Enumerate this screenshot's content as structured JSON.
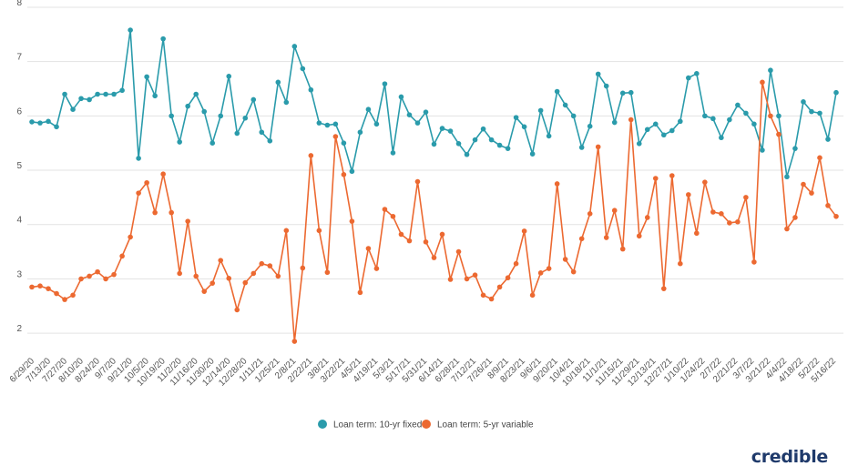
{
  "brand": "credible",
  "chart_data": {
    "type": "line",
    "title": "",
    "xlabel": "",
    "ylabel": "",
    "ylim": [
      1.7,
      8
    ],
    "yticks": [
      2,
      3,
      4,
      5,
      6,
      7,
      8
    ],
    "grid": true,
    "legend": "bottom-center",
    "x_tick_labels": [
      "6/29/20",
      "7/13/20",
      "7/27/20",
      "8/10/20",
      "8/24/20",
      "9/7/20",
      "9/21/20",
      "10/5/20",
      "10/19/20",
      "11/2/20",
      "11/16/20",
      "11/30/20",
      "12/14/20",
      "12/28/20",
      "1/11/21",
      "1/25/21",
      "2/8/21",
      "2/22/21",
      "3/8/21",
      "3/22/21",
      "4/5/21",
      "4/19/21",
      "5/3/21",
      "5/17/21",
      "5/31/21",
      "6/14/21",
      "6/28/21",
      "7/12/21",
      "7/26/21",
      "8/9/21",
      "8/23/21",
      "9/6/21",
      "9/20/21",
      "10/4/21",
      "10/18/21",
      "11/1/21",
      "11/15/21",
      "11/29/21",
      "12/13/21",
      "12/27/21",
      "1/10/22",
      "1/24/22",
      "2/7/22",
      "2/21/22",
      "3/7/22",
      "3/21/22",
      "4/4/22",
      "4/18/22",
      "5/2/22",
      "5/16/22"
    ],
    "series": [
      {
        "name": "Loan term: 10-yr fixed",
        "color": "#2a9bab",
        "values": [
          5.89,
          5.87,
          5.9,
          5.8,
          6.4,
          6.12,
          6.32,
          6.3,
          6.4,
          6.4,
          6.4,
          6.47,
          7.58,
          5.22,
          6.72,
          6.37,
          7.42,
          6,
          5.52,
          6.18,
          6.4,
          6.08,
          5.5,
          6,
          6.73,
          5.68,
          5.96,
          6.3,
          5.7,
          5.54,
          6.62,
          6.25,
          7.28,
          6.87,
          6.48,
          5.87,
          5.83,
          5.85,
          5.5,
          4.98,
          5.7,
          6.12,
          5.85,
          6.59,
          5.32,
          6.35,
          6.02,
          5.87,
          6.07,
          5.48,
          5.77,
          5.72,
          5.49,
          5.29,
          5.56,
          5.76,
          5.56,
          5.46,
          5.4,
          5.97,
          5.8,
          5.3,
          6.1,
          5.63,
          6.45,
          6.2,
          6,
          5.42,
          5.81,
          6.77,
          6.55,
          5.88,
          6.42,
          6.43,
          5.49,
          5.75,
          5.85,
          5.65,
          5.73,
          5.9,
          6.7,
          6.78,
          6,
          5.95,
          5.6,
          5.93,
          6.2,
          6.05,
          5.85,
          5.37,
          6.84,
          6,
          4.88,
          5.4,
          6.26,
          6.08,
          6.05,
          5.57,
          6.43
        ]
      },
      {
        "name": "Loan term: 5-yr variable",
        "color": "#ec6931",
        "values": [
          2.85,
          2.87,
          2.82,
          2.73,
          2.62,
          2.7,
          3,
          3.05,
          3.13,
          3,
          3.08,
          3.42,
          3.77,
          4.58,
          4.77,
          4.22,
          4.93,
          4.22,
          3.1,
          4.06,
          3.05,
          2.77,
          2.92,
          3.34,
          3.01,
          2.43,
          2.93,
          3.1,
          3.28,
          3.24,
          3.05,
          3.89,
          1.85,
          3.2,
          5.27,
          3.89,
          3.12,
          5.62,
          4.92,
          4.06,
          2.75,
          3.56,
          3.19,
          4.28,
          4.15,
          3.82,
          3.7,
          4.79,
          3.68,
          3.39,
          3.82,
          2.99,
          3.5,
          3,
          3.07,
          2.7,
          2.63,
          2.85,
          3.02,
          3.28,
          3.88,
          2.7,
          3.11,
          3.19,
          4.75,
          3.36,
          3.13,
          3.74,
          4.2,
          5.43,
          3.76,
          4.26,
          3.55,
          5.93,
          3.79,
          4.13,
          4.85,
          2.82,
          4.9,
          3.28,
          4.55,
          3.84,
          4.78,
          4.23,
          4.2,
          4.03,
          4.05,
          4.5,
          3.31,
          6.62,
          6,
          5.66,
          3.92,
          4.13,
          4.74,
          4.58,
          5.23,
          4.35,
          4.15
        ]
      }
    ]
  }
}
